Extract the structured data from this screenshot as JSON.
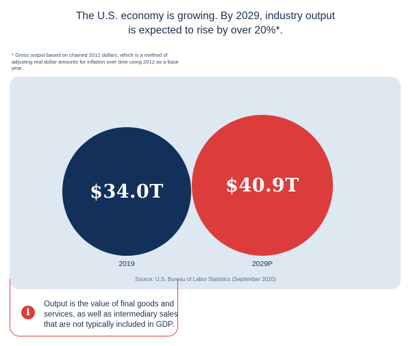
{
  "headline": {
    "line1": "The U.S. economy is growing. By 2029, industry output",
    "line2": "is expected to rise by over 20%*."
  },
  "footnote": "* Gross output based on chained 2012 dollars, which is a method of adjusting real dollar amounts for inflation over time using 2012 as a base year.",
  "chart_data": {
    "type": "bubble",
    "title": "",
    "unit": "trillion dollars",
    "categories": [
      "2019",
      "2029P"
    ],
    "values": [
      34.0,
      40.9
    ],
    "value_labels": [
      "$34.0T",
      "$40.9T"
    ],
    "colors": [
      "#13305a",
      "#dc3c3c"
    ],
    "source": "Source: U.S. Bureau of Labor Statistics (September 2020)"
  },
  "note": {
    "icon": "info-icon",
    "icon_glyph": "i",
    "line1": "Output is the value of final goods and",
    "line2": "services, as well as intermediary sales",
    "line3": "that are not typically included in GDP."
  }
}
